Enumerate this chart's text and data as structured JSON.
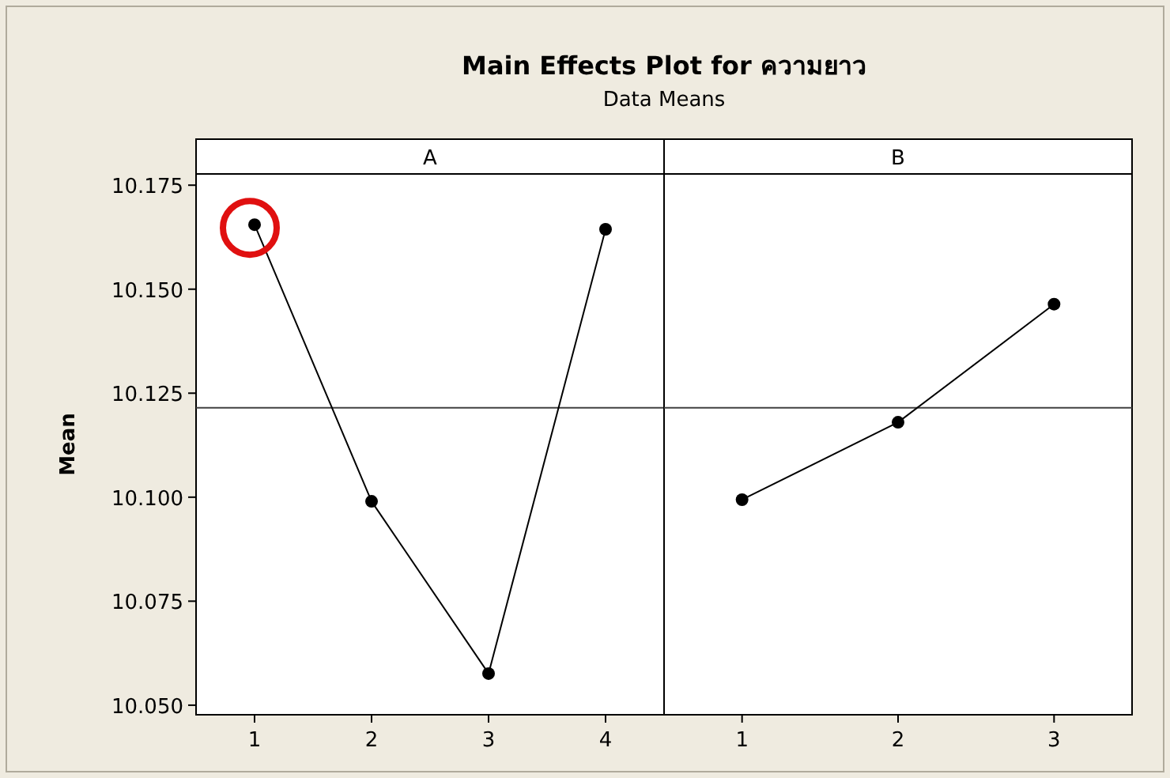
{
  "chart_data": [
    {
      "type": "line",
      "title": "Main Effects Plot for ความยาว",
      "subtitle": "Data Means",
      "ylabel": "Mean",
      "annotations": [
        "A"
      ],
      "categories": [
        "1",
        "2",
        "3",
        "4"
      ],
      "series": [
        {
          "color": "#000000",
          "values": [
            10.1655,
            10.099,
            10.0576,
            10.1644
          ]
        }
      ],
      "ylim": [
        10.0477,
        10.1777
      ],
      "yticks": [
        {
          "value": 10.05,
          "label": "10.050"
        },
        {
          "value": 10.075,
          "label": "10.075"
        },
        {
          "value": 10.1,
          "label": "10.100"
        },
        {
          "value": 10.125,
          "label": "10.125"
        },
        {
          "value": 10.15,
          "label": "10.150"
        },
        {
          "value": 10.175,
          "label": "10.175"
        }
      ],
      "ref_lines": [
        {
          "axis": "y",
          "value": 10.1215,
          "color": "#404040"
        }
      ],
      "marker": "circle",
      "line_style": "solid",
      "grid": false
    },
    {
      "type": "line",
      "annotations": [
        "B"
      ],
      "categories": [
        "1",
        "2",
        "3"
      ],
      "series": [
        {
          "color": "#000000",
          "values": [
            10.0994,
            10.118,
            10.1464
          ]
        }
      ],
      "ylim": [
        10.0477,
        10.1777
      ],
      "tick_labels": "x",
      "ref_lines": [
        {
          "axis": "y",
          "value": 10.1215,
          "color": "#404040"
        }
      ],
      "marker": "circle",
      "line_style": "solid",
      "grid": false
    }
  ]
}
